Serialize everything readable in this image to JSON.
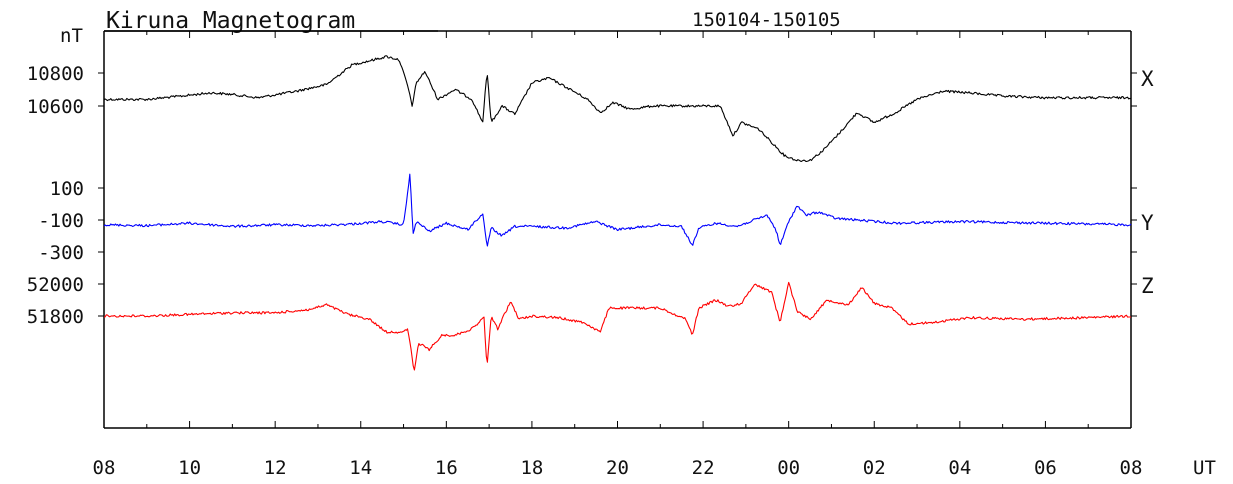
{
  "title": "Kiruna Magnetogram",
  "date_range": "150104-150105",
  "unit_label": "nT",
  "time_unit": "UT",
  "chart_data": {
    "type": "line",
    "x_tick_labels": [
      "08",
      "10",
      "12",
      "14",
      "16",
      "18",
      "20",
      "22",
      "00",
      "02",
      "04",
      "06",
      "08"
    ],
    "x_range_hours": [
      8,
      32
    ],
    "series": [
      {
        "name": "X",
        "color": "#000000",
        "ticks": [
          10800,
          10600
        ],
        "x": [
          8,
          9,
          9.8,
          10.5,
          11,
          11.6,
          12.5,
          13.2,
          13.8,
          14.3,
          14.6,
          14.9,
          15.1,
          15.2,
          15.3,
          15.5,
          15.8,
          16.2,
          16.6,
          16.85,
          16.95,
          17.05,
          17.3,
          17.6,
          18,
          18.4,
          18.9,
          19.3,
          19.6,
          19.9,
          20.3,
          20.8,
          21.4,
          21.9,
          22.4,
          22.7,
          22.9,
          23.3,
          23.6,
          23.9,
          24.2,
          24.5,
          24.8,
          25.2,
          25.6,
          26,
          26.5,
          27,
          27.6,
          28.2,
          29,
          30,
          31,
          32
        ],
        "values": [
          10640,
          10640,
          10660,
          10680,
          10670,
          10650,
          10690,
          10730,
          10850,
          10880,
          10900,
          10880,
          10720,
          10600,
          10740,
          10810,
          10640,
          10700,
          10640,
          10500,
          10810,
          10500,
          10600,
          10550,
          10740,
          10770,
          10700,
          10640,
          10560,
          10620,
          10580,
          10600,
          10600,
          10600,
          10600,
          10420,
          10500,
          10460,
          10380,
          10300,
          10270,
          10270,
          10330,
          10440,
          10560,
          10500,
          10560,
          10640,
          10690,
          10680,
          10660,
          10650,
          10650,
          10650
        ]
      },
      {
        "name": "Y",
        "color": "#0000ff",
        "ticks": [
          100,
          -100,
          -300
        ],
        "x": [
          8,
          9,
          10,
          11,
          12,
          13,
          13.8,
          14.5,
          15.0,
          15.15,
          15.22,
          15.3,
          15.6,
          16,
          16.5,
          16.85,
          16.95,
          17.05,
          17.3,
          17.6,
          18,
          18.8,
          19.5,
          20,
          21,
          21.5,
          21.75,
          21.9,
          22.3,
          22.8,
          23.2,
          23.5,
          23.7,
          23.8,
          24,
          24.2,
          24.4,
          24.7,
          25.1,
          25.6,
          26.5,
          28,
          30,
          32
        ],
        "values": [
          -130,
          -135,
          -120,
          -140,
          -130,
          -135,
          -125,
          -110,
          -130,
          190,
          -190,
          -110,
          -170,
          -120,
          -160,
          -60,
          -270,
          -150,
          -200,
          -140,
          -140,
          -150,
          -110,
          -160,
          -130,
          -140,
          -260,
          -150,
          -120,
          -140,
          -100,
          -70,
          -160,
          -260,
          -110,
          -10,
          -70,
          -50,
          -90,
          -100,
          -120,
          -110,
          -120,
          -130
        ]
      },
      {
        "name": "Z",
        "color": "#ff0000",
        "ticks": [
          52000,
          51800
        ],
        "x": [
          8,
          9,
          10,
          11,
          12,
          12.8,
          13.2,
          13.7,
          14.2,
          14.6,
          15.0,
          15.1,
          15.25,
          15.35,
          15.6,
          15.9,
          16.2,
          16.6,
          16.88,
          16.95,
          17.05,
          17.2,
          17.5,
          17.7,
          18,
          18.6,
          19.2,
          19.6,
          19.8,
          20.3,
          21,
          21.6,
          21.75,
          21.9,
          22.3,
          22.6,
          22.9,
          23.2,
          23.6,
          23.8,
          24.0,
          24.2,
          24.5,
          24.9,
          25.4,
          25.7,
          26.0,
          26.4,
          26.8,
          27.4,
          28.2,
          29.5,
          31,
          32
        ],
        "values": [
          51800,
          51800,
          51810,
          51820,
          51820,
          51840,
          51870,
          51810,
          51780,
          51700,
          51700,
          51720,
          51450,
          51630,
          51590,
          51680,
          51680,
          51720,
          51790,
          51480,
          51800,
          51720,
          51890,
          51780,
          51800,
          51790,
          51760,
          51700,
          51850,
          51850,
          51850,
          51780,
          51680,
          51850,
          51900,
          51860,
          51880,
          52000,
          51950,
          51760,
          52010,
          51830,
          51780,
          51900,
          51870,
          51980,
          51880,
          51850,
          51750,
          51760,
          51790,
          51780,
          51790,
          51800
        ]
      }
    ]
  }
}
